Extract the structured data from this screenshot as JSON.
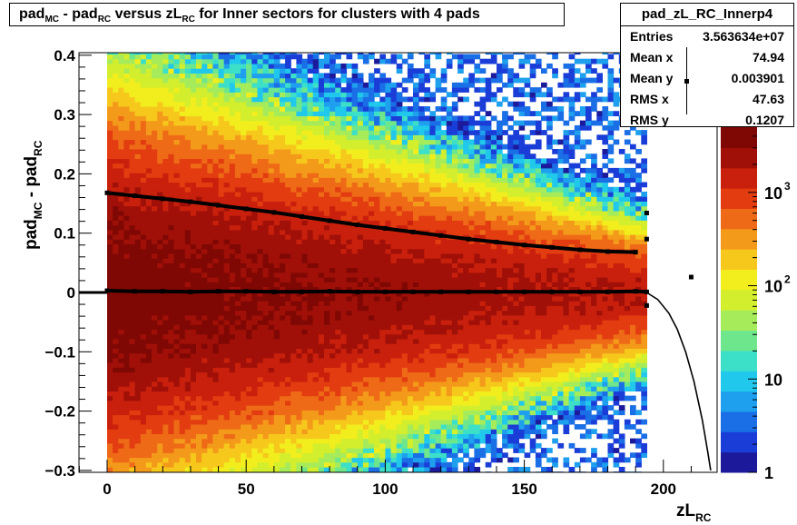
{
  "title": {
    "parts": [
      {
        "t": "pad",
        "sub": false
      },
      {
        "t": "MC",
        "sub": true
      },
      {
        "t": " - pad",
        "sub": false
      },
      {
        "t": "RC",
        "sub": true
      },
      {
        "t": " versus zL",
        "sub": false
      },
      {
        "t": "RC",
        "sub": true
      },
      {
        "t": " for Inner sectors for clusters with 4 pads",
        "sub": false
      }
    ]
  },
  "stats": {
    "name": "pad_zL_RC_Innerp4",
    "rows": [
      {
        "key": "Entries",
        "value": "3.563634e+07"
      },
      {
        "key": "Mean x",
        "value": "74.94"
      },
      {
        "key": "Mean y",
        "value": "0.003901"
      },
      {
        "key": "RMS x",
        "value": "47.63"
      },
      {
        "key": "RMS y",
        "value": "0.1207"
      }
    ]
  },
  "xlabel": {
    "main": "zL",
    "sub": "RC"
  },
  "ylabel": {
    "p1": "pad",
    "s1": "MC",
    "p2": " - pad",
    "s2": "RC"
  },
  "palette": [
    "#1c1a9a",
    "#1a3dd8",
    "#1a6ee6",
    "#1ea0ee",
    "#20c8ec",
    "#3ce0c8",
    "#6ee68c",
    "#a6ec5a",
    "#d2ee2c",
    "#f2ee1e",
    "#f6c81c",
    "#f49a1a",
    "#ee6a16",
    "#e23c10",
    "#c8200c",
    "#a01008",
    "#800804"
  ],
  "chart_data": {
    "type": "heatmap",
    "title": "pad_{MC} - pad_{RC} versus zL_{RC} for Inner sectors for clusters with 4 pads",
    "xlabel": "zL_RC",
    "ylabel": "pad_MC - pad_RC",
    "xlim": [
      -10,
      218
    ],
    "ylim": [
      -0.31,
      0.41
    ],
    "x_ticks": [
      {
        "v": 0,
        "label": "0"
      },
      {
        "v": 50,
        "label": "50"
      },
      {
        "v": 100,
        "label": "100"
      },
      {
        "v": 150,
        "label": "150"
      },
      {
        "v": 200,
        "label": "200"
      }
    ],
    "y_ticks": [
      {
        "v": 0.4,
        "label": "0.4"
      },
      {
        "v": 0.3,
        "label": "0.3"
      },
      {
        "v": 0.2,
        "label": "0.2"
      },
      {
        "v": 0.1,
        "label": "0.1"
      },
      {
        "v": 0,
        "label": "0"
      },
      {
        "v": -0.1,
        "label": "−0.1"
      },
      {
        "v": -0.2,
        "label": "−0.2"
      },
      {
        "v": -0.3,
        "label": "−0.3"
      }
    ],
    "z_axis": {
      "scale": "log",
      "range": [
        1,
        5000
      ],
      "ticks": [
        {
          "v": 1,
          "label": "1"
        },
        {
          "v": 10,
          "label": "10"
        },
        {
          "v": 100,
          "label": "10",
          "exp": "2"
        },
        {
          "v": 1000,
          "label": "10",
          "exp": "3"
        }
      ]
    },
    "density_region": {
      "x": [
        0,
        194
      ]
    },
    "series": [
      {
        "style": "mean-profile",
        "x": [
          0,
          10,
          20,
          30,
          40,
          50,
          60,
          70,
          80,
          90,
          100,
          110,
          120,
          130,
          140,
          150,
          160,
          170,
          180,
          190,
          194
        ],
        "y": [
          0.003,
          0.002,
          0.002,
          0.001,
          0.002,
          0.002,
          0.001,
          0.001,
          0.002,
          0.001,
          0.001,
          0.001,
          0.001,
          0.001,
          0.001,
          0.001,
          0.001,
          0.001,
          0.001,
          0.002,
          0.001
        ]
      },
      {
        "style": "rms-profile",
        "x": [
          0,
          10,
          20,
          30,
          40,
          50,
          60,
          70,
          80,
          90,
          100,
          110,
          120,
          130,
          140,
          150,
          160,
          170,
          180,
          190
        ],
        "y": [
          0.168,
          0.163,
          0.158,
          0.153,
          0.147,
          0.141,
          0.135,
          0.128,
          0.121,
          0.114,
          0.108,
          0.102,
          0.096,
          0.09,
          0.085,
          0.08,
          0.076,
          0.072,
          0.069,
          0.068
        ]
      },
      {
        "style": "fit-curve",
        "x": [
          194,
          198,
          202,
          205,
          208,
          211,
          214,
          216,
          217
        ],
        "y": [
          0.0,
          -0.012,
          -0.035,
          -0.062,
          -0.1,
          -0.15,
          -0.215,
          -0.27,
          -0.3
        ]
      },
      {
        "style": "points",
        "x": [
          194,
          194,
          194,
          210
        ],
        "y": [
          0.134,
          0.09,
          -0.022,
          0.026
        ]
      }
    ]
  }
}
